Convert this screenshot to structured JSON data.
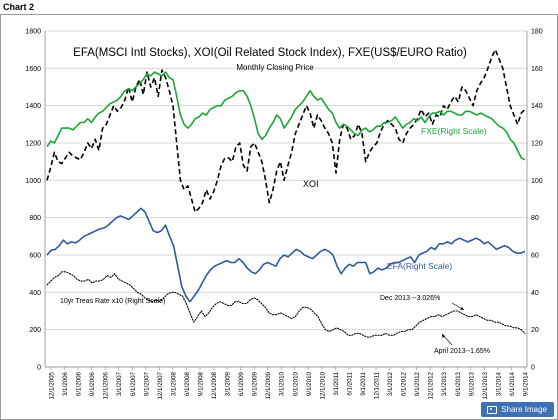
{
  "page": {
    "label": "Chart 2",
    "share_label": "Share Image"
  },
  "chart_data": {
    "type": "line",
    "title": "EFA(MSCI Intl Stocks), XOI(Oil Related Stock Index), FXE(US$/EURO  Ratio)",
    "subtitle": "Monthly Closing Price",
    "x_labels": [
      "12/1/2005",
      "3/1/2006",
      "6/1/2006",
      "9/1/2006",
      "12/1/2006",
      "3/1/2007",
      "6/1/2007",
      "9/1/2007",
      "12/1/2007",
      "3/1/2008",
      "6/1/2008",
      "9/1/2008",
      "12/1/2008",
      "3/1/2009",
      "6/1/2009",
      "9/1/2009",
      "12/1/2009",
      "3/1/2010",
      "6/1/2010",
      "9/1/2010",
      "12/1/2010",
      "3/1/2011",
      "6/1/2011",
      "9/1/2011",
      "12/1/2011",
      "3/1/2012",
      "6/1/2012",
      "9/1/2012",
      "12/1/2012",
      "3/1/2013",
      "6/1/2013",
      "9/1/2013",
      "12/1/2013",
      "3/1/2014",
      "6/1/2014",
      "9/1/2014"
    ],
    "y_left": {
      "min": 0,
      "max": 1800,
      "ticks": [
        0,
        200,
        400,
        600,
        800,
        1000,
        1200,
        1400,
        1600,
        1800
      ]
    },
    "y_right": {
      "min": 0,
      "max": 180,
      "ticks": [
        0,
        20,
        40,
        60,
        80,
        100,
        120,
        140,
        160,
        180
      ]
    },
    "grid": true,
    "series": [
      {
        "name": "XOI",
        "axis": "left",
        "style": "dashed",
        "color": "#000000",
        "values": [
          1000,
          1070,
          1150,
          1100,
          1090,
          1120,
          1150,
          1130,
          1120,
          1110,
          1150,
          1200,
          1170,
          1220,
          1160,
          1280,
          1300,
          1350,
          1400,
          1370,
          1390,
          1430,
          1500,
          1420,
          1500,
          1540,
          1460,
          1580,
          1500,
          1550,
          1450,
          1590,
          1550,
          1480,
          1400,
          1200,
          1000,
          950,
          970,
          900,
          830,
          850,
          880,
          950,
          900,
          940,
          1000,
          1080,
          1120,
          1120,
          1100,
          1180,
          1200,
          1080,
          1050,
          1180,
          1200,
          1150,
          1100,
          1000,
          880,
          950,
          1050,
          1100,
          1000,
          1080,
          1150,
          1250,
          1300,
          1350,
          1400,
          1360,
          1280,
          1350,
          1320,
          1280,
          1250,
          1200,
          1040,
          1220,
          1300,
          1280,
          1220,
          1240,
          1300,
          1250,
          1100,
          1150,
          1180,
          1200,
          1260,
          1300,
          1320,
          1300,
          1280,
          1220,
          1200,
          1250,
          1280,
          1300,
          1330,
          1380,
          1340,
          1360,
          1300,
          1350,
          1340,
          1400,
          1380,
          1420,
          1450,
          1420,
          1500,
          1480,
          1440,
          1400,
          1480,
          1520,
          1550,
          1600,
          1660,
          1700,
          1650,
          1600,
          1500,
          1400,
          1350,
          1300,
          1360,
          1380
        ]
      },
      {
        "name": "FXE(Right Scale)",
        "axis": "right",
        "style": "solid",
        "color": "#1ca53a",
        "values": [
          118,
          121,
          120,
          124,
          128,
          128,
          128,
          127,
          129,
          131,
          131,
          133,
          131,
          134,
          136,
          137,
          139,
          141,
          142,
          143,
          145,
          148,
          149,
          148,
          150,
          152,
          154,
          157,
          156,
          158,
          157,
          156,
          158,
          155,
          154,
          145,
          135,
          130,
          128,
          130,
          133,
          134,
          136,
          135,
          138,
          139,
          140,
          140,
          143,
          144,
          145,
          147,
          148,
          148,
          145,
          140,
          133,
          125,
          122,
          124,
          128,
          131,
          135,
          133,
          128,
          131,
          134,
          138,
          140,
          142,
          145,
          148,
          145,
          143,
          144,
          141,
          138,
          136,
          131,
          128,
          130,
          129,
          127,
          125,
          124,
          127,
          128,
          126,
          127,
          129,
          129,
          131,
          131,
          132,
          134,
          131,
          128,
          130,
          131,
          133,
          132,
          134,
          131,
          134,
          136,
          136,
          137,
          135,
          137,
          137,
          136,
          135,
          135,
          137,
          137,
          136,
          135,
          136,
          135,
          134,
          133,
          131,
          129,
          128,
          126,
          122,
          120,
          116,
          112,
          111
        ]
      },
      {
        "name": "EFA(Right Scale)",
        "axis": "left",
        "style": "solid",
        "color": "#2f5b9c",
        "values": [
          600,
          625,
          630,
          650,
          680,
          660,
          670,
          665,
          680,
          700,
          710,
          720,
          730,
          740,
          745,
          760,
          780,
          800,
          810,
          800,
          790,
          810,
          830,
          850,
          830,
          780,
          730,
          720,
          730,
          760,
          700,
          650,
          540,
          430,
          380,
          350,
          380,
          410,
          450,
          490,
          520,
          540,
          550,
          560,
          570,
          560,
          560,
          580,
          560,
          530,
          510,
          500,
          520,
          550,
          560,
          550,
          540,
          580,
          600,
          590,
          610,
          630,
          620,
          600,
          590,
          580,
          600,
          620,
          630,
          620,
          600,
          540,
          500,
          530,
          550,
          540,
          560,
          560,
          560,
          500,
          510,
          530,
          520,
          530,
          550,
          560,
          560,
          570,
          580,
          590,
          560,
          600,
          610,
          620,
          640,
          630,
          660,
          660,
          670,
          660,
          680,
          690,
          680,
          670,
          680,
          690,
          680,
          660,
          670,
          650,
          630,
          640,
          650,
          640,
          620,
          610,
          610,
          620
        ]
      },
      {
        "name": "10yr Treas Rate x10 (Right Scale)",
        "axis": "right",
        "style": "dotted",
        "color": "#000000",
        "values": [
          44,
          46,
          48,
          49,
          51,
          51,
          50,
          49,
          47,
          46,
          46,
          47,
          45,
          46,
          46,
          47,
          49,
          48,
          50,
          47,
          46,
          45,
          44,
          42,
          40,
          39,
          37,
          36,
          35,
          36,
          35,
          37,
          39,
          40,
          40,
          39,
          38,
          34,
          29,
          24,
          27,
          30,
          27,
          29,
          32,
          34,
          35,
          34,
          33,
          33,
          35,
          35,
          34,
          34,
          36,
          37,
          36,
          34,
          32,
          29,
          28,
          28,
          29,
          28,
          27,
          26,
          27,
          30,
          32,
          32,
          31,
          29,
          27,
          23,
          20,
          19,
          20,
          21,
          20,
          19,
          17,
          17,
          18,
          18,
          17,
          16,
          16,
          17,
          17,
          17,
          18,
          17,
          17,
          18,
          19,
          19,
          20,
          20,
          22,
          24,
          25,
          26,
          27,
          27,
          28,
          27,
          28,
          29,
          30,
          30,
          29,
          28,
          27,
          27,
          28,
          27,
          26,
          25,
          25,
          24,
          24,
          23,
          22,
          22,
          21,
          21,
          20,
          18
        ]
      }
    ],
    "annotations": [
      {
        "text": "XOI",
        "series": "XOI"
      },
      {
        "text": "FXE(Right Scale)",
        "series": "FXE(Right Scale)"
      },
      {
        "text": "EFA(Right Scale)",
        "series": "EFA(Right Scale)"
      },
      {
        "text": "10yr Treas Rate x10 (Right Scale)",
        "series": "10yr Treas Rate x10 (Right Scale)"
      },
      {
        "text": "Dec 2013 --3.026%"
      },
      {
        "text": "April 2013--1.65%"
      }
    ]
  }
}
